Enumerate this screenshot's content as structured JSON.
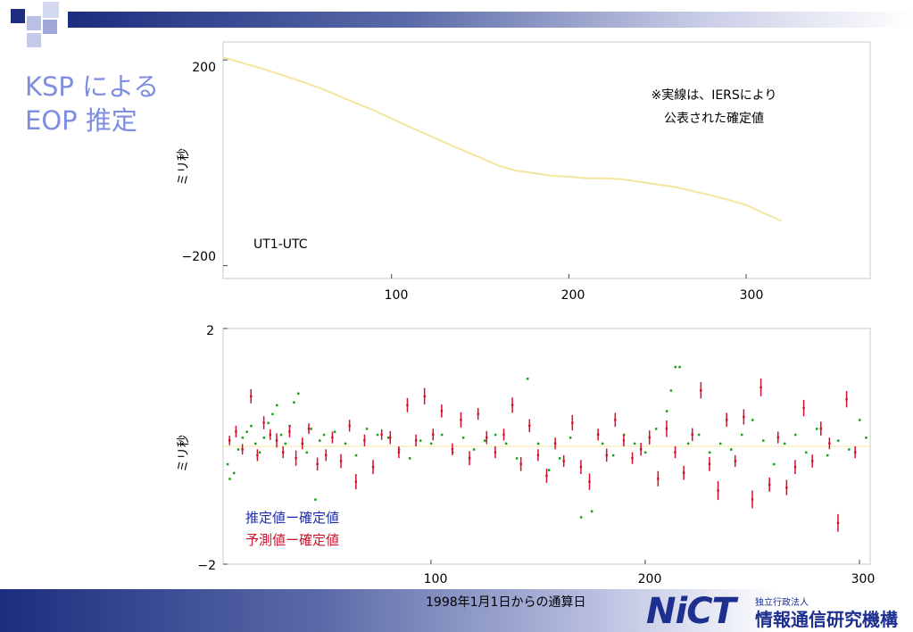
{
  "slide": {
    "title_line1": "KSP による",
    "title_line2": "EOP 推定",
    "xlabel": "1998年1月1日からの通算日"
  },
  "logo": {
    "mark": "NiCT",
    "small": "独立行政法人",
    "big": "情報通信研究機構"
  },
  "colors": {
    "accent": "#7f8de0",
    "top_line": "#f3e6a0",
    "estimate": "#1a9e1a",
    "prediction": "#d0112b",
    "legend_estimate": "#1b2bb5",
    "legend_prediction": "#d0112b"
  },
  "chart_data": [
    {
      "type": "line",
      "ylabel": "ミリ秒",
      "annotation": "UT1-UTC",
      "note_line1": "※実線は、IERSにより",
      "note_line2": "公表された確定値",
      "xlim": [
        5,
        370
      ],
      "ylim": [
        -225,
        235
      ],
      "yticks": [
        200,
        -200
      ],
      "yticklabels": [
        "200",
        "−200"
      ],
      "xticks": [
        100,
        200,
        300
      ],
      "xticklabels": [
        "100",
        "200",
        "300"
      ],
      "series": [
        {
          "x": [
            5,
            15,
            30,
            45,
            60,
            75,
            90,
            105,
            120,
            135,
            150,
            160,
            170,
            180,
            190,
            200,
            210,
            220,
            230,
            240,
            250,
            260,
            270,
            280,
            290,
            300,
            310,
            320
          ],
          "values": [
            205,
            195,
            180,
            163,
            145,
            123,
            102,
            78,
            55,
            32,
            10,
            -5,
            -15,
            -20,
            -25,
            -27,
            -30,
            -30,
            -32,
            -37,
            -42,
            -47,
            -55,
            -63,
            -72,
            -82,
            -98,
            -113
          ]
        }
      ]
    },
    {
      "type": "scatter",
      "ylabel": "ミリ秒",
      "xlim": [
        3,
        305
      ],
      "ylim": [
        -2,
        2
      ],
      "yticks": [
        2,
        -2
      ],
      "yticklabels": [
        "2",
        "−2"
      ],
      "xticks": [
        100,
        200,
        300
      ],
      "xticklabels": [
        "100",
        "200",
        "300"
      ],
      "legend": [
        "推定値ー確定値",
        "予測値ー確定値"
      ],
      "legend_position": "bottom-left",
      "series": [
        {
          "x": [
            5,
            6,
            8,
            10,
            12,
            14,
            16,
            18,
            20,
            22,
            24,
            26,
            28,
            30,
            32,
            34,
            36,
            38,
            40,
            42,
            44,
            46,
            48,
            50,
            55,
            60,
            65,
            70,
            75,
            80,
            85,
            90,
            95,
            100,
            105,
            110,
            115,
            120,
            125,
            130,
            135,
            140,
            145,
            150,
            155,
            160,
            165,
            170,
            175,
            180,
            185,
            190,
            195,
            200,
            205,
            210,
            212,
            214,
            216,
            220,
            225,
            230,
            235,
            240,
            245,
            250,
            255,
            260,
            265,
            270,
            275,
            280,
            285,
            290,
            295,
            300,
            303
          ],
          "values": [
            -0.3,
            -0.55,
            -0.45,
            -0.05,
            0.15,
            0.25,
            0.35,
            0.05,
            -0.1,
            0.15,
            0.4,
            0.55,
            0.7,
            0.2,
            0.05,
            0.35,
            0.75,
            0.9,
            0.05,
            -0.1,
            0.3,
            -0.9,
            0.1,
            0.2,
            0.25,
            0.05,
            -0.15,
            0.3,
            0.2,
            0.15,
            -0.05,
            -0.2,
            0.1,
            0.05,
            0.2,
            -0.1,
            0.15,
            -0.05,
            0.1,
            0.2,
            0.05,
            -0.2,
            1.15,
            0.05,
            -0.4,
            -0.2,
            0.15,
            -1.2,
            -1.1,
            0.05,
            -0.15,
            0.2,
            0.05,
            -0.1,
            0.3,
            0.6,
            0.95,
            1.35,
            1.35,
            0.05,
            0.2,
            -0.1,
            0.05,
            -0.05,
            0.2,
            0.45,
            0.1,
            -0.3,
            0.05,
            0.2,
            -0.1,
            0.3,
            -0.15,
            0.1,
            -0.05,
            0.45,
            0.15
          ]
        },
        {
          "x": [
            6,
            9,
            12,
            16,
            19,
            22,
            25,
            28,
            31,
            34,
            37,
            40,
            43,
            47,
            51,
            54,
            58,
            62,
            65,
            69,
            73,
            77,
            81,
            85,
            89,
            93,
            97,
            101,
            105,
            110,
            114,
            118,
            122,
            126,
            130,
            134,
            138,
            142,
            146,
            150,
            154,
            158,
            162,
            166,
            170,
            174,
            178,
            182,
            186,
            190,
            194,
            198,
            202,
            206,
            210,
            214,
            218,
            222,
            226,
            230,
            234,
            238,
            242,
            246,
            250,
            254,
            258,
            262,
            266,
            270,
            274,
            278,
            282,
            286,
            290,
            294,
            298
          ],
          "values": [
            0.1,
            0.25,
            -0.05,
            0.85,
            -0.15,
            0.4,
            0.2,
            0.1,
            -0.1,
            0.25,
            -0.2,
            0.05,
            0.3,
            -0.3,
            -0.15,
            0.15,
            -0.25,
            0.35,
            -0.6,
            0.1,
            -0.35,
            0.2,
            0.15,
            -0.1,
            0.7,
            0.1,
            0.85,
            0.2,
            0.6,
            -0.05,
            0.45,
            -0.2,
            0.55,
            0.15,
            -0.1,
            0.2,
            0.7,
            -0.3,
            0.35,
            -0.15,
            -0.5,
            0.05,
            -0.25,
            0.4,
            -0.35,
            -0.6,
            0.2,
            -0.15,
            0.45,
            0.1,
            -0.2,
            -0.05,
            0.15,
            -0.55,
            0.3,
            -0.1,
            -0.45,
            0.2,
            0.95,
            -0.3,
            -0.75,
            0.45,
            -0.25,
            0.5,
            -0.9,
            1.0,
            -0.65,
            0.15,
            -0.7,
            -0.35,
            0.65,
            -0.25,
            0.3,
            0.05,
            -1.3,
            0.8,
            -0.1
          ],
          "error": [
            0.08,
            0.1,
            0.09,
            0.12,
            0.1,
            0.11,
            0.09,
            0.12,
            0.1,
            0.1,
            0.13,
            0.1,
            0.09,
            0.11,
            0.1,
            0.1,
            0.12,
            0.1,
            0.13,
            0.1,
            0.12,
            0.09,
            0.11,
            0.1,
            0.12,
            0.1,
            0.14,
            0.1,
            0.11,
            0.1,
            0.13,
            0.12,
            0.1,
            0.11,
            0.1,
            0.1,
            0.13,
            0.12,
            0.11,
            0.1,
            0.12,
            0.1,
            0.1,
            0.13,
            0.12,
            0.14,
            0.1,
            0.11,
            0.12,
            0.1,
            0.1,
            0.11,
            0.12,
            0.13,
            0.14,
            0.1,
            0.12,
            0.11,
            0.14,
            0.12,
            0.16,
            0.12,
            0.1,
            0.13,
            0.15,
            0.15,
            0.12,
            0.1,
            0.13,
            0.12,
            0.14,
            0.11,
            0.12,
            0.1,
            0.15,
            0.14,
            0.1
          ]
        }
      ]
    }
  ]
}
